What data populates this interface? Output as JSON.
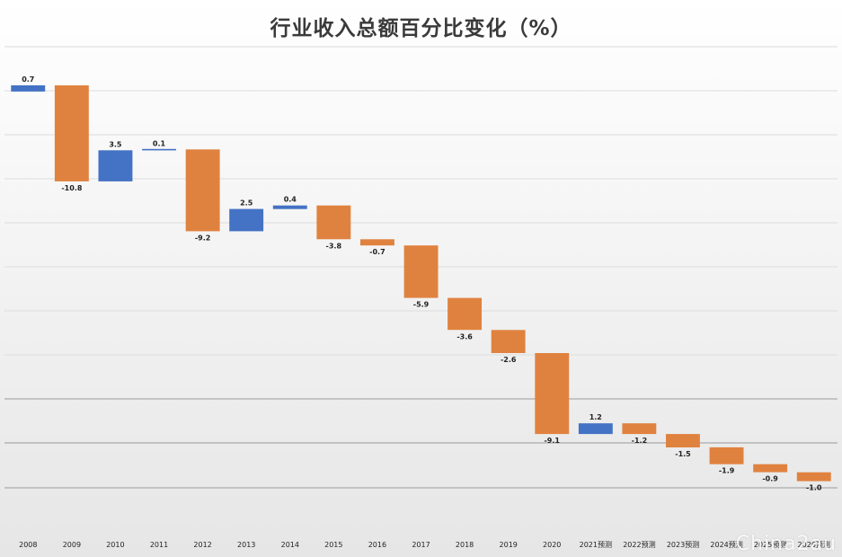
{
  "chart_data": {
    "type": "bar",
    "subtype": "waterfall",
    "title": "行业收入总额百分比变化（%）",
    "categories": [
      "2008",
      "2009",
      "2010",
      "2011",
      "2012",
      "2013",
      "2014",
      "2015",
      "2016",
      "2017",
      "2018",
      "2019",
      "2020",
      "2021预测",
      "2022预测",
      "2023预测",
      "2024预测",
      "2025预测",
      "2026预测"
    ],
    "values": [
      0.7,
      -10.8,
      3.5,
      0.1,
      -9.2,
      2.5,
      0.4,
      -3.8,
      -0.7,
      -5.9,
      -3.6,
      -2.6,
      -9.1,
      1.2,
      -1.2,
      -1.5,
      -1.9,
      -0.9,
      -1.0
    ],
    "data_labels": [
      "0.7",
      "-10.8",
      "3.5",
      "0.1",
      "-9.2",
      "2.5",
      "0.4",
      "-3.8",
      "-0.7",
      "-5.9",
      "-3.6",
      "-2.6",
      "-9.1",
      "1.2",
      "-1.2",
      "-1.5",
      "-1.9",
      "-0.9",
      "-1.0"
    ],
    "colors": {
      "increase": "#4472C4",
      "decrease": "#E0823F"
    },
    "grid": true,
    "legend": false
  },
  "watermark": "China2au"
}
